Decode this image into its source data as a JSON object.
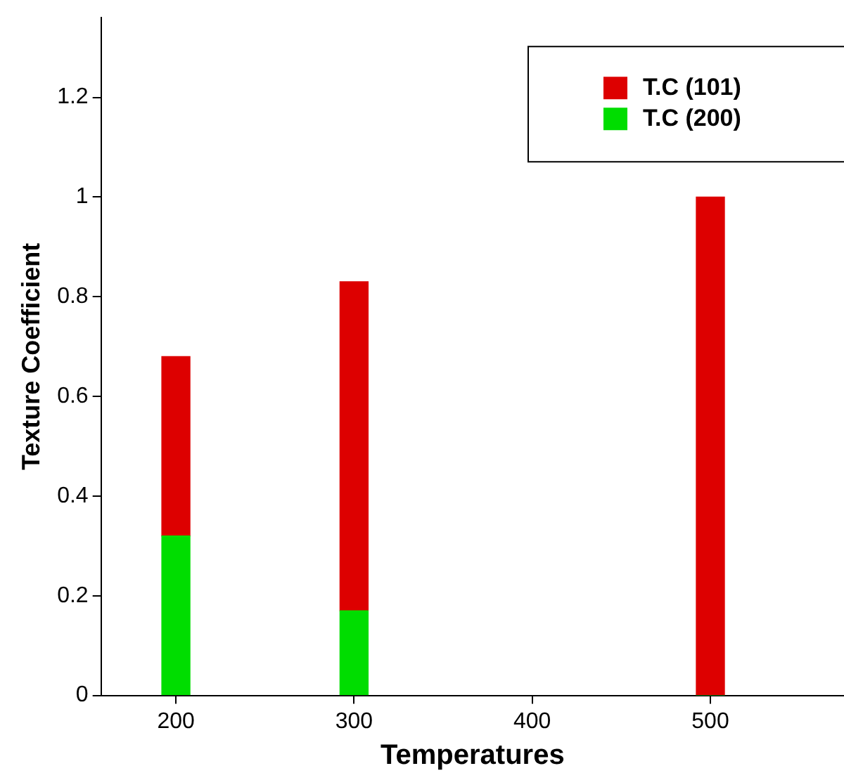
{
  "chart_data": {
    "type": "bar",
    "xlabel": "Temperatures",
    "ylabel": "Texture Coefficient",
    "x": [
      200,
      300,
      500
    ],
    "stacked": true,
    "series": [
      {
        "name": "T.C (200)",
        "color": "#00dd00",
        "values": [
          0.32,
          0.17,
          0
        ]
      },
      {
        "name": "T.C (101)",
        "color": "#dd0000",
        "values": [
          0.36,
          0.66,
          1.0
        ]
      }
    ],
    "xlim": [
      158,
      575
    ],
    "xticks": [
      200,
      300,
      400,
      500
    ],
    "ylim": [
      0,
      1.36
    ],
    "yticks": [
      0,
      0.2,
      0.4,
      0.6,
      0.8,
      1,
      1.2
    ],
    "grid": false,
    "legend": "top right"
  }
}
